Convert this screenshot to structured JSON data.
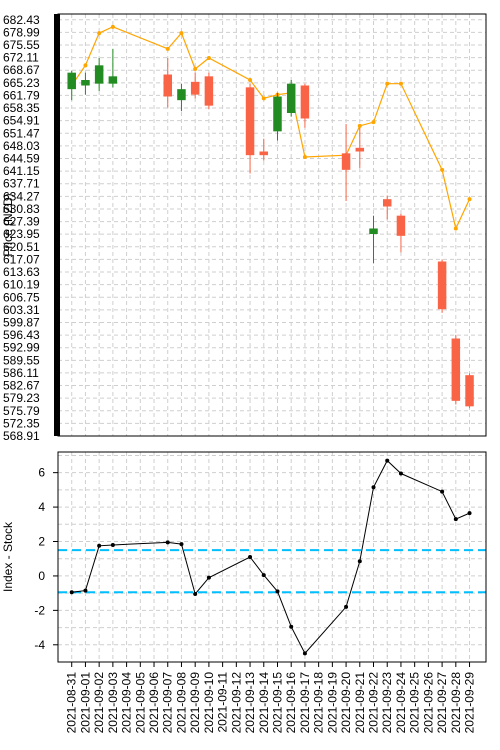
{
  "chart_data": [
    {
      "type": "candlestick",
      "ylabel": "Price (NZD)",
      "ylim": [
        568.91,
        684.0
      ],
      "y_ticks": [
        "682.43",
        "678.99",
        "675.55",
        "672.11",
        "668.67",
        "665.23",
        "661.79",
        "658.35",
        "654.91",
        "651.47",
        "648.03",
        "644.59",
        "641.15",
        "637.71",
        "634.27",
        "630.83",
        "627.39",
        "623.95",
        "620.51",
        "617.07",
        "613.63",
        "610.19",
        "606.75",
        "603.31",
        "599.87",
        "596.43",
        "592.99",
        "589.55",
        "586.11",
        "582.67",
        "579.23",
        "575.79",
        "572.35",
        "568.91"
      ],
      "dates": [
        "2021-08-31",
        "2021-09-01",
        "2021-09-02",
        "2021-09-03",
        "2021-09-04",
        "2021-09-05",
        "2021-09-06",
        "2021-09-07",
        "2021-09-08",
        "2021-09-09",
        "2021-09-10",
        "2021-09-11",
        "2021-09-12",
        "2021-09-13",
        "2021-09-14",
        "2021-09-15",
        "2021-09-16",
        "2021-09-17",
        "2021-09-18",
        "2021-09-19",
        "2021-09-20",
        "2021-09-21",
        "2021-09-22",
        "2021-09-23",
        "2021-09-24",
        "2021-09-25",
        "2021-09-26",
        "2021-09-27",
        "2021-09-28",
        "2021-09-29"
      ],
      "candles": [
        {
          "date": "2021-08-31",
          "open": 663.5,
          "high": 668.5,
          "low": 660.5,
          "close": 668.0
        },
        {
          "date": "2021-09-01",
          "open": 664.5,
          "high": 668.0,
          "low": 662.0,
          "close": 666.0
        },
        {
          "date": "2021-09-02",
          "open": 665.0,
          "high": 672.0,
          "low": 663.0,
          "close": 670.0
        },
        {
          "date": "2021-09-03",
          "open": 665.0,
          "high": 674.5,
          "low": 664.0,
          "close": 667.0
        },
        {
          "date": "2021-09-07",
          "open": 667.5,
          "high": 672.0,
          "low": 658.5,
          "close": 661.5
        },
        {
          "date": "2021-09-08",
          "open": 660.5,
          "high": 665.0,
          "low": 657.5,
          "close": 663.5
        },
        {
          "date": "2021-09-09",
          "open": 665.5,
          "high": 668.0,
          "low": 661.0,
          "close": 662.0
        },
        {
          "date": "2021-09-10",
          "open": 667.0,
          "high": 668.0,
          "low": 658.0,
          "close": 659.0
        },
        {
          "date": "2021-09-13",
          "open": 664.0,
          "high": 665.0,
          "low": 640.5,
          "close": 645.5
        },
        {
          "date": "2021-09-14",
          "open": 646.5,
          "high": 650.0,
          "low": 644.0,
          "close": 645.5
        },
        {
          "date": "2021-09-15",
          "open": 652.0,
          "high": 662.5,
          "low": 649.5,
          "close": 661.5
        },
        {
          "date": "2021-09-16",
          "open": 657.0,
          "high": 666.0,
          "low": 656.0,
          "close": 665.0
        },
        {
          "date": "2021-09-17",
          "open": 664.5,
          "high": 665.0,
          "low": 653.0,
          "close": 655.5
        },
        {
          "date": "2021-09-20",
          "open": 646.0,
          "high": 654.0,
          "low": 633.0,
          "close": 641.5
        },
        {
          "date": "2021-09-21",
          "open": 647.5,
          "high": 653.0,
          "low": 642.0,
          "close": 646.5
        },
        {
          "date": "2021-09-22",
          "open": 624.0,
          "high": 629.0,
          "low": 616.0,
          "close": 625.5
        },
        {
          "date": "2021-09-23",
          "open": 633.5,
          "high": 634.5,
          "low": 628.0,
          "close": 631.5
        },
        {
          "date": "2021-09-24",
          "open": 629.0,
          "high": 629.5,
          "low": 619.0,
          "close": 623.5
        },
        {
          "date": "2021-09-27",
          "open": 616.5,
          "high": 617.0,
          "low": 602.5,
          "close": 603.5
        },
        {
          "date": "2021-09-28",
          "open": 595.5,
          "high": 596.5,
          "low": 577.5,
          "close": 578.5
        },
        {
          "date": "2021-09-29",
          "open": 585.5,
          "high": 586.0,
          "low": 576.5,
          "close": 577.0
        }
      ],
      "overlay_line": {
        "color": "#FFA500",
        "points": [
          {
            "date": "2021-08-31",
            "value": 664.5
          },
          {
            "date": "2021-09-01",
            "value": 670.0
          },
          {
            "date": "2021-09-02",
            "value": 678.8
          },
          {
            "date": "2021-09-03",
            "value": 680.5
          },
          {
            "date": "2021-09-07",
            "value": 674.5
          },
          {
            "date": "2021-09-08",
            "value": 678.8
          },
          {
            "date": "2021-09-09",
            "value": 669.0
          },
          {
            "date": "2021-09-10",
            "value": 672.0
          },
          {
            "date": "2021-09-13",
            "value": 666.0
          },
          {
            "date": "2021-09-14",
            "value": 661.0
          },
          {
            "date": "2021-09-15",
            "value": 662.0
          },
          {
            "date": "2021-09-16",
            "value": 662.5
          },
          {
            "date": "2021-09-17",
            "value": 645.0
          },
          {
            "date": "2021-09-20",
            "value": 645.5
          },
          {
            "date": "2021-09-21",
            "value": 653.5
          },
          {
            "date": "2021-09-22",
            "value": 654.5
          },
          {
            "date": "2021-09-23",
            "value": 665.0
          },
          {
            "date": "2021-09-24",
            "value": 665.0
          },
          {
            "date": "2021-09-27",
            "value": 641.5
          },
          {
            "date": "2021-09-28",
            "value": 625.5
          },
          {
            "date": "2021-09-29",
            "value": 633.5
          }
        ]
      },
      "colors": {
        "up": "#228B22",
        "down": "#FA6446"
      }
    },
    {
      "type": "line",
      "ylabel": "Index - Stock",
      "ylim": [
        -5.0,
        7.2
      ],
      "y_ticks": [
        -4,
        -2,
        0,
        2,
        4,
        6
      ],
      "series": [
        {
          "color": "#000000",
          "points": [
            {
              "date": "2021-08-31",
              "value": -0.95
            },
            {
              "date": "2021-09-01",
              "value": -0.85
            },
            {
              "date": "2021-09-02",
              "value": 1.75
            },
            {
              "date": "2021-09-03",
              "value": 1.8
            },
            {
              "date": "2021-09-07",
              "value": 1.95
            },
            {
              "date": "2021-09-08",
              "value": 1.85
            },
            {
              "date": "2021-09-09",
              "value": -1.05
            },
            {
              "date": "2021-09-10",
              "value": -0.1
            },
            {
              "date": "2021-09-13",
              "value": 1.1
            },
            {
              "date": "2021-09-14",
              "value": 0.05
            },
            {
              "date": "2021-09-15",
              "value": -0.9
            },
            {
              "date": "2021-09-16",
              "value": -2.95
            },
            {
              "date": "2021-09-17",
              "value": -4.5
            },
            {
              "date": "2021-09-20",
              "value": -1.8
            },
            {
              "date": "2021-09-21",
              "value": 0.85
            },
            {
              "date": "2021-09-22",
              "value": 5.15
            },
            {
              "date": "2021-09-23",
              "value": 6.7
            },
            {
              "date": "2021-09-24",
              "value": 5.95
            },
            {
              "date": "2021-09-27",
              "value": 4.9
            },
            {
              "date": "2021-09-28",
              "value": 3.3
            },
            {
              "date": "2021-09-29",
              "value": 3.65
            }
          ]
        }
      ],
      "hlines": [
        {
          "value": 1.5,
          "color": "#00BFFF",
          "style": "dashed"
        },
        {
          "value": -0.95,
          "color": "#00BFFF",
          "style": "dashed"
        }
      ]
    }
  ]
}
